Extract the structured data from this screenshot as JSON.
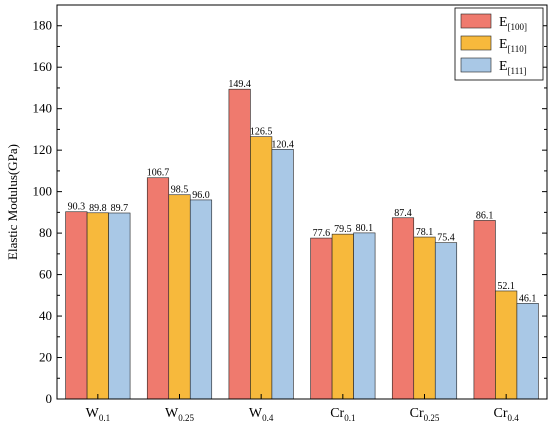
{
  "chart_data": {
    "type": "bar",
    "ylabel": "Elastic Modulus(GPa)",
    "ylim": [
      0,
      190
    ],
    "yticks": [
      0,
      20,
      40,
      60,
      80,
      100,
      120,
      140,
      160,
      180
    ],
    "grid": false,
    "legend_position": "top-right",
    "categories": [
      {
        "base": "W",
        "sub": "0.1"
      },
      {
        "base": "W",
        "sub": "0.25"
      },
      {
        "base": "W",
        "sub": "0.4"
      },
      {
        "base": "Cr",
        "sub": "0.1"
      },
      {
        "base": "Cr",
        "sub": "0.25"
      },
      {
        "base": "Cr",
        "sub": "0.4"
      }
    ],
    "series": [
      {
        "name_base": "E",
        "name_sub": "[100]",
        "color": "#ef7a6e",
        "values": [
          90.3,
          106.7,
          149.4,
          77.6,
          87.4,
          86.1
        ],
        "labels": [
          "90.3",
          "106.7",
          "149.4",
          "77.6",
          "87.4",
          "86.1"
        ]
      },
      {
        "name_base": "E",
        "name_sub": "[110]",
        "color": "#f7b93c",
        "values": [
          89.8,
          98.5,
          126.5,
          79.5,
          78.1,
          52.1
        ],
        "labels": [
          "89.8",
          "98.5",
          "126.5",
          "79.5",
          "78.1",
          "52.1"
        ]
      },
      {
        "name_base": "E",
        "name_sub": "[111]",
        "color": "#a9c8e6",
        "values": [
          89.7,
          96.0,
          120.4,
          80.1,
          75.4,
          46.1
        ],
        "labels": [
          "89.7",
          "96.0",
          "120.4",
          "80.1",
          "75.4",
          "46.1"
        ]
      }
    ]
  }
}
